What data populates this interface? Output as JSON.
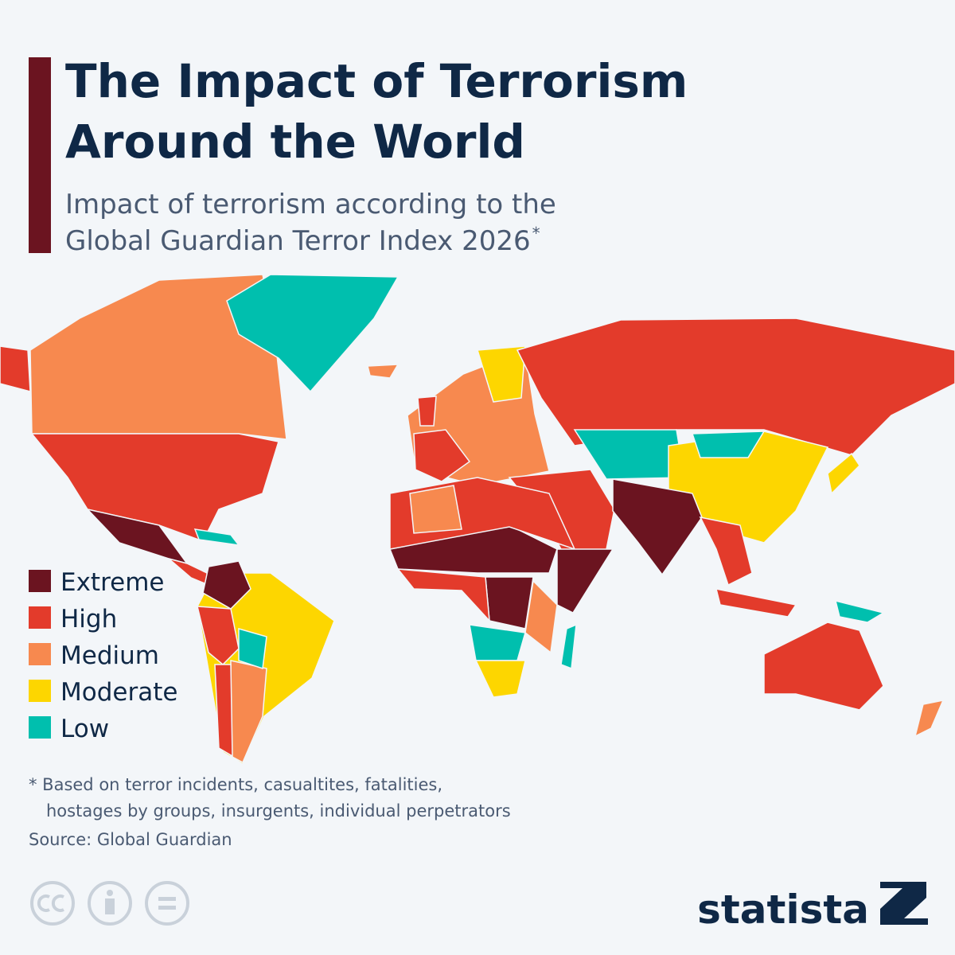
{
  "header": {
    "title_lines": [
      "The Impact of Terrorism",
      "Around the World"
    ],
    "subtitle_lines": [
      "Impact of terrorism according to the",
      "Global Guardian Terror Index 2026"
    ],
    "subtitle_note_mark": "*"
  },
  "legend": {
    "items": [
      {
        "label": "Extreme",
        "color": "#6b1420"
      },
      {
        "label": "High",
        "color": "#e33b2b"
      },
      {
        "label": "Medium",
        "color": "#f7894f"
      },
      {
        "label": "Moderate",
        "color": "#fdd600"
      },
      {
        "label": "Low",
        "color": "#00bfae"
      }
    ]
  },
  "footer": {
    "note_lines": [
      "* Based on terror incidents, casualtites, fatalities,",
      "hostages by groups, insurgents, individual perpetrators"
    ],
    "source": "Source: Global Guardian",
    "brand": "statista"
  }
}
